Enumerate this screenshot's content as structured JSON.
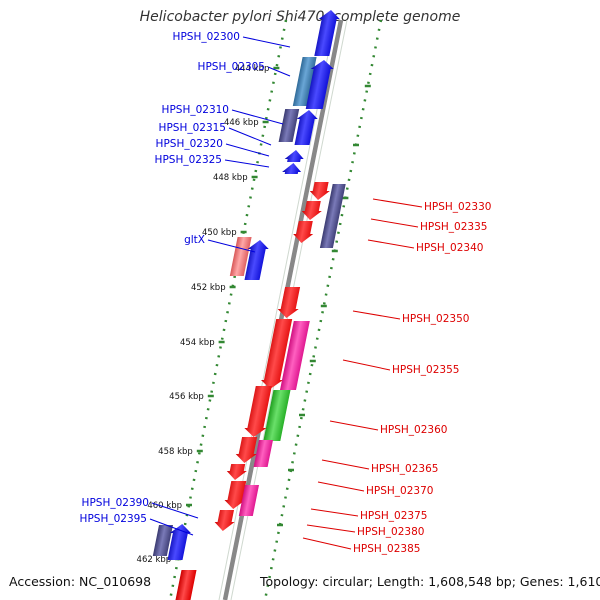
{
  "title": "Helicobacter pylori Shi470, complete genome",
  "accession": "Accession: NC_010698",
  "topology": "Topology: circular; Length: 1,608,548 bp; Genes: 1,610",
  "colors": {
    "forward": "#0000dd",
    "reverse": "#dd0000",
    "dark_blue_gene": "#50508c",
    "steel_blue_gene": "#3f7fb0",
    "magenta_gene": "#f020a0",
    "green_gene": "#30c030",
    "pink_gene": "#ec7878",
    "tick_green": "#338833",
    "backbone": "#888888"
  },
  "kbp_ticks": [
    "444 kbp",
    "446 kbp",
    "448 kbp",
    "450 kbp",
    "452 kbp",
    "454 kbp",
    "456 kbp",
    "458 kbp",
    "460 kbp",
    "462 kbp"
  ],
  "left_labels": [
    "HPSH_02300",
    "HPSH_02305",
    "HPSH_02310",
    "HPSH_02315",
    "HPSH_02320",
    "HPSH_02325",
    "gltX",
    "HPSH_02390",
    "HPSH_02395"
  ],
  "right_labels": [
    "HPSH_02330",
    "HPSH_02335",
    "HPSH_02340",
    "HPSH_02350",
    "HPSH_02355",
    "HPSH_02360",
    "HPSH_02365",
    "HPSH_02370",
    "HPSH_02375",
    "HPSH_02380",
    "HPSH_02385"
  ]
}
